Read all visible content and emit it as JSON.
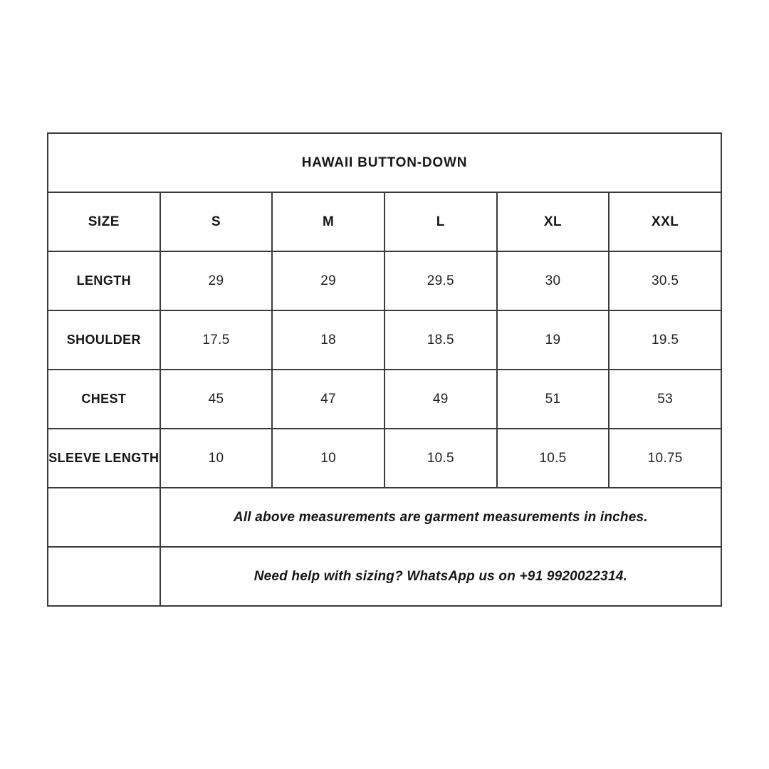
{
  "chart_data": {
    "type": "table",
    "title": "HAWAII BUTTON-DOWN",
    "columns": [
      "SIZE",
      "S",
      "M",
      "L",
      "XL",
      "XXL"
    ],
    "rows": [
      {
        "label": "LENGTH",
        "values": [
          "29",
          "29",
          "29.5",
          "30",
          "30.5"
        ]
      },
      {
        "label": "SHOULDER",
        "values": [
          "17.5",
          "18",
          "18.5",
          "19",
          "19.5"
        ]
      },
      {
        "label": "CHEST",
        "values": [
          "45",
          "47",
          "49",
          "51",
          "53"
        ]
      },
      {
        "label": "SLEEVE LENGTH",
        "values": [
          "10",
          "10",
          "10.5",
          "10.5",
          "10.75"
        ]
      }
    ],
    "notes": [
      "All above measurements are garment measurements in inches.",
      "Need help with sizing? WhatsApp us on +91 9920022314."
    ]
  },
  "colors": {
    "border": "#3b3b3b",
    "text": "#1a1a1a",
    "background": "#ffffff"
  }
}
